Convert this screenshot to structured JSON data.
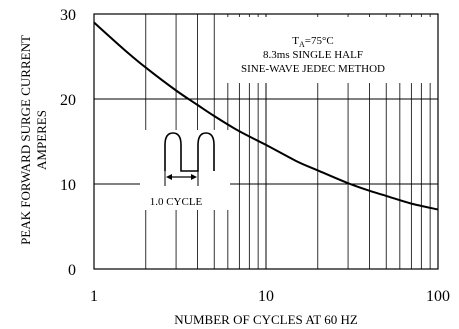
{
  "chart_data": {
    "type": "line",
    "xscale": "log",
    "xlabel": "NUMBER OF CYCLES AT 60 HZ",
    "ylabel_line1": "PEAK FORWARD SURGE CURRENT",
    "ylabel_line2": "AMPERES",
    "xlim": [
      1,
      100
    ],
    "ylim": [
      0,
      30
    ],
    "xticks": [
      {
        "v": 1,
        "label": "1"
      },
      {
        "v": 10,
        "label": "10"
      },
      {
        "v": 100,
        "label": "100"
      }
    ],
    "yticks": [
      {
        "v": 0,
        "label": "0"
      },
      {
        "v": 10,
        "label": "10"
      },
      {
        "v": 20,
        "label": "20"
      },
      {
        "v": 30,
        "label": "30"
      }
    ],
    "grid": true,
    "series": [
      {
        "x": [
          1,
          1.5,
          2,
          3,
          4,
          5,
          7,
          10,
          15,
          20,
          30,
          40,
          50,
          70,
          100
        ],
        "y": [
          29.0,
          25.8,
          23.7,
          21.0,
          19.3,
          18.0,
          16.2,
          14.6,
          12.7,
          11.6,
          10.1,
          9.2,
          8.6,
          7.7,
          7.0
        ]
      }
    ],
    "annotation": {
      "condition_prefix": "T",
      "condition_subscript": "A",
      "condition_value": "=75°C",
      "method_line1": "8.3ms SINGLE HALF",
      "method_line2": "SINE-WAVE JEDEC METHOD",
      "cycle_label": "1.0 CYCLE"
    }
  }
}
